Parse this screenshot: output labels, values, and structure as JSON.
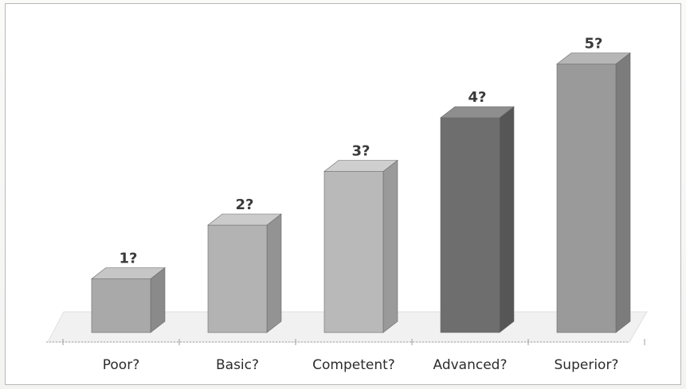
{
  "chart_data": {
    "type": "bar",
    "categories": [
      "Poor?",
      "Basic?",
      "Competent?",
      "Advanced?",
      "Superior?"
    ],
    "values": [
      1,
      2,
      3,
      4,
      5
    ],
    "data_labels": [
      "1?",
      "2?",
      "3?",
      "4?",
      "5?"
    ],
    "title": "",
    "xlabel": "",
    "ylabel": "",
    "ylim": [
      0,
      5.6
    ],
    "grid": false,
    "legend": "none",
    "style": "3d-column",
    "colors": {
      "front": [
        "#a9a9a9",
        "#b3b3b3",
        "#b9b9b9",
        "#6e6e6e",
        "#9a9a9a"
      ],
      "side": [
        "#8a8a8a",
        "#939393",
        "#9a9a9a",
        "#565656",
        "#7c7c7c"
      ],
      "top": [
        "#c6c6c6",
        "#cbcbcb",
        "#cfcfcf",
        "#8e8e8e",
        "#b6b6b6"
      ],
      "axis": "#9c9c9c",
      "text": "#2c2c2c"
    }
  }
}
